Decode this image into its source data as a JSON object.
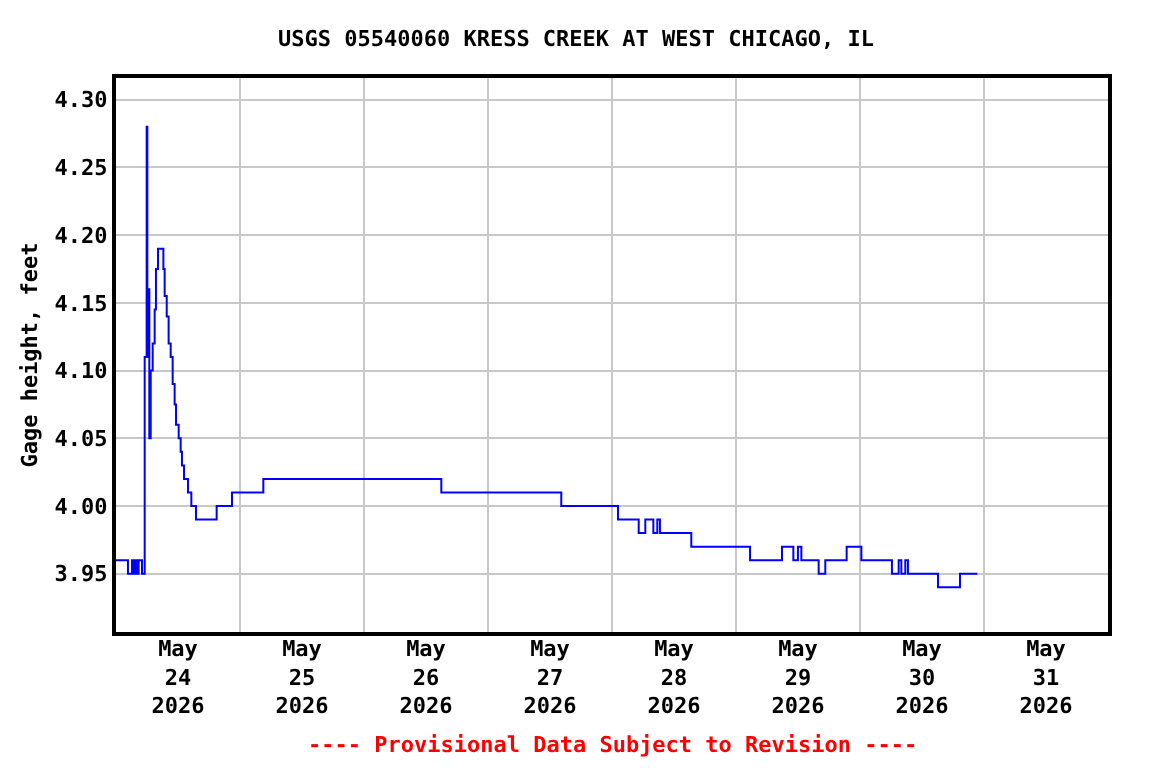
{
  "chart_data": {
    "type": "step",
    "title": "USGS 05540060 KRESS CREEK AT WEST CHICAGO, IL",
    "ylabel": "Gage height, feet",
    "annotations": [
      "---- Provisional Data Subject to Revision ----"
    ],
    "x": [
      "2026-05-24T00:00",
      "2026-05-24T02:19",
      "2026-05-24T03:06",
      "2026-05-24T03:21",
      "2026-05-24T03:44",
      "2026-05-24T04:00",
      "2026-05-24T04:23",
      "2026-05-24T05:02",
      "2026-05-24T05:33",
      "2026-05-24T05:56",
      "2026-05-24T06:04",
      "2026-05-24T06:11",
      "2026-05-24T06:27",
      "2026-05-24T06:43",
      "2026-05-24T07:06",
      "2026-05-24T07:29",
      "2026-05-24T07:44",
      "2026-05-24T08:08",
      "2026-05-24T09:10",
      "2026-05-24T09:25",
      "2026-05-24T09:49",
      "2026-05-24T10:11",
      "2026-05-24T10:35",
      "2026-05-24T10:58",
      "2026-05-24T11:21",
      "2026-05-24T11:37",
      "2026-05-24T12:08",
      "2026-05-24T12:31",
      "2026-05-24T12:46",
      "2026-05-24T13:10",
      "2026-05-24T13:56",
      "2026-05-24T14:35",
      "2026-05-24T15:29",
      "2026-05-24T19:29",
      "2026-05-24T22:27",
      "2026-05-25T04:31",
      "2026-05-26T14:58",
      "2026-05-27T14:11",
      "2026-05-28T01:10",
      "2026-05-28T05:10",
      "2026-05-28T06:27",
      "2026-05-28T08:00",
      "2026-05-28T08:46",
      "2026-05-28T09:17",
      "2026-05-28T15:21",
      "2026-05-29T02:43",
      "2026-05-29T08:54",
      "2026-05-29T11:06",
      "2026-05-29T11:59",
      "2026-05-29T12:39",
      "2026-05-29T16:00",
      "2026-05-29T17:17",
      "2026-05-29T21:25",
      "2026-05-30T00:16",
      "2026-05-30T06:11",
      "2026-05-30T07:29",
      "2026-05-30T08:00",
      "2026-05-30T08:46",
      "2026-05-30T09:17",
      "2026-05-30T15:06",
      "2026-05-30T19:21",
      "2026-05-30T22:43"
    ],
    "series": [
      {
        "color": "#0000ff",
        "values": [
          3.96,
          3.95,
          3.96,
          3.95,
          3.96,
          3.95,
          3.96,
          3.95,
          4.11,
          4.28,
          4.11,
          4.16,
          4.05,
          4.1,
          4.12,
          4.145,
          4.175,
          4.19,
          4.175,
          4.155,
          4.14,
          4.12,
          4.11,
          4.09,
          4.075,
          4.06,
          4.05,
          4.04,
          4.03,
          4.02,
          4.01,
          4.0,
          3.99,
          4.0,
          4.01,
          4.02,
          4.01,
          4.0,
          3.99,
          3.98,
          3.99,
          3.98,
          3.99,
          3.98,
          3.97,
          3.96,
          3.97,
          3.96,
          3.97,
          3.96,
          3.95,
          3.96,
          3.97,
          3.96,
          3.95,
          3.96,
          3.95,
          3.96,
          3.95,
          3.94,
          3.95,
          3.95
        ]
      }
    ],
    "xlim": [
      "2026-05-24T00:00",
      "2026-06-01T00:00"
    ],
    "xticks": [
      {
        "value": "2026-05-24T12:00",
        "label": "May\n24\n2026"
      },
      {
        "value": "2026-05-25T12:00",
        "label": "May\n25\n2026"
      },
      {
        "value": "2026-05-26T12:00",
        "label": "May\n26\n2026"
      },
      {
        "value": "2026-05-27T12:00",
        "label": "May\n27\n2026"
      },
      {
        "value": "2026-05-28T12:00",
        "label": "May\n28\n2026"
      },
      {
        "value": "2026-05-29T12:00",
        "label": "May\n29\n2026"
      },
      {
        "value": "2026-05-30T12:00",
        "label": "May\n30\n2026"
      },
      {
        "value": "2026-05-31T12:00",
        "label": "May\n31\n2026"
      },
      {
        "value": "2026-05-25T00:00",
        "label": null
      },
      {
        "value": "2026-05-26T00:00",
        "label": null
      },
      {
        "value": "2026-05-27T00:00",
        "label": null
      },
      {
        "value": "2026-05-28T00:00",
        "label": null
      },
      {
        "value": "2026-05-29T00:00",
        "label": null
      },
      {
        "value": "2026-05-30T00:00",
        "label": null
      },
      {
        "value": "2026-05-31T00:00",
        "label": null
      }
    ],
    "ylim": [
      3.907,
      4.316
    ],
    "yticks": [
      {
        "value": 3.95,
        "label": "3.95"
      },
      {
        "value": 4.0,
        "label": "4.00"
      },
      {
        "value": 4.05,
        "label": "4.05"
      },
      {
        "value": 4.1,
        "label": "4.10"
      },
      {
        "value": 4.15,
        "label": "4.15"
      },
      {
        "value": 4.2,
        "label": "4.20"
      },
      {
        "value": 4.25,
        "label": "4.25"
      },
      {
        "value": 4.3,
        "label": "4.30"
      }
    ],
    "grid": true
  }
}
